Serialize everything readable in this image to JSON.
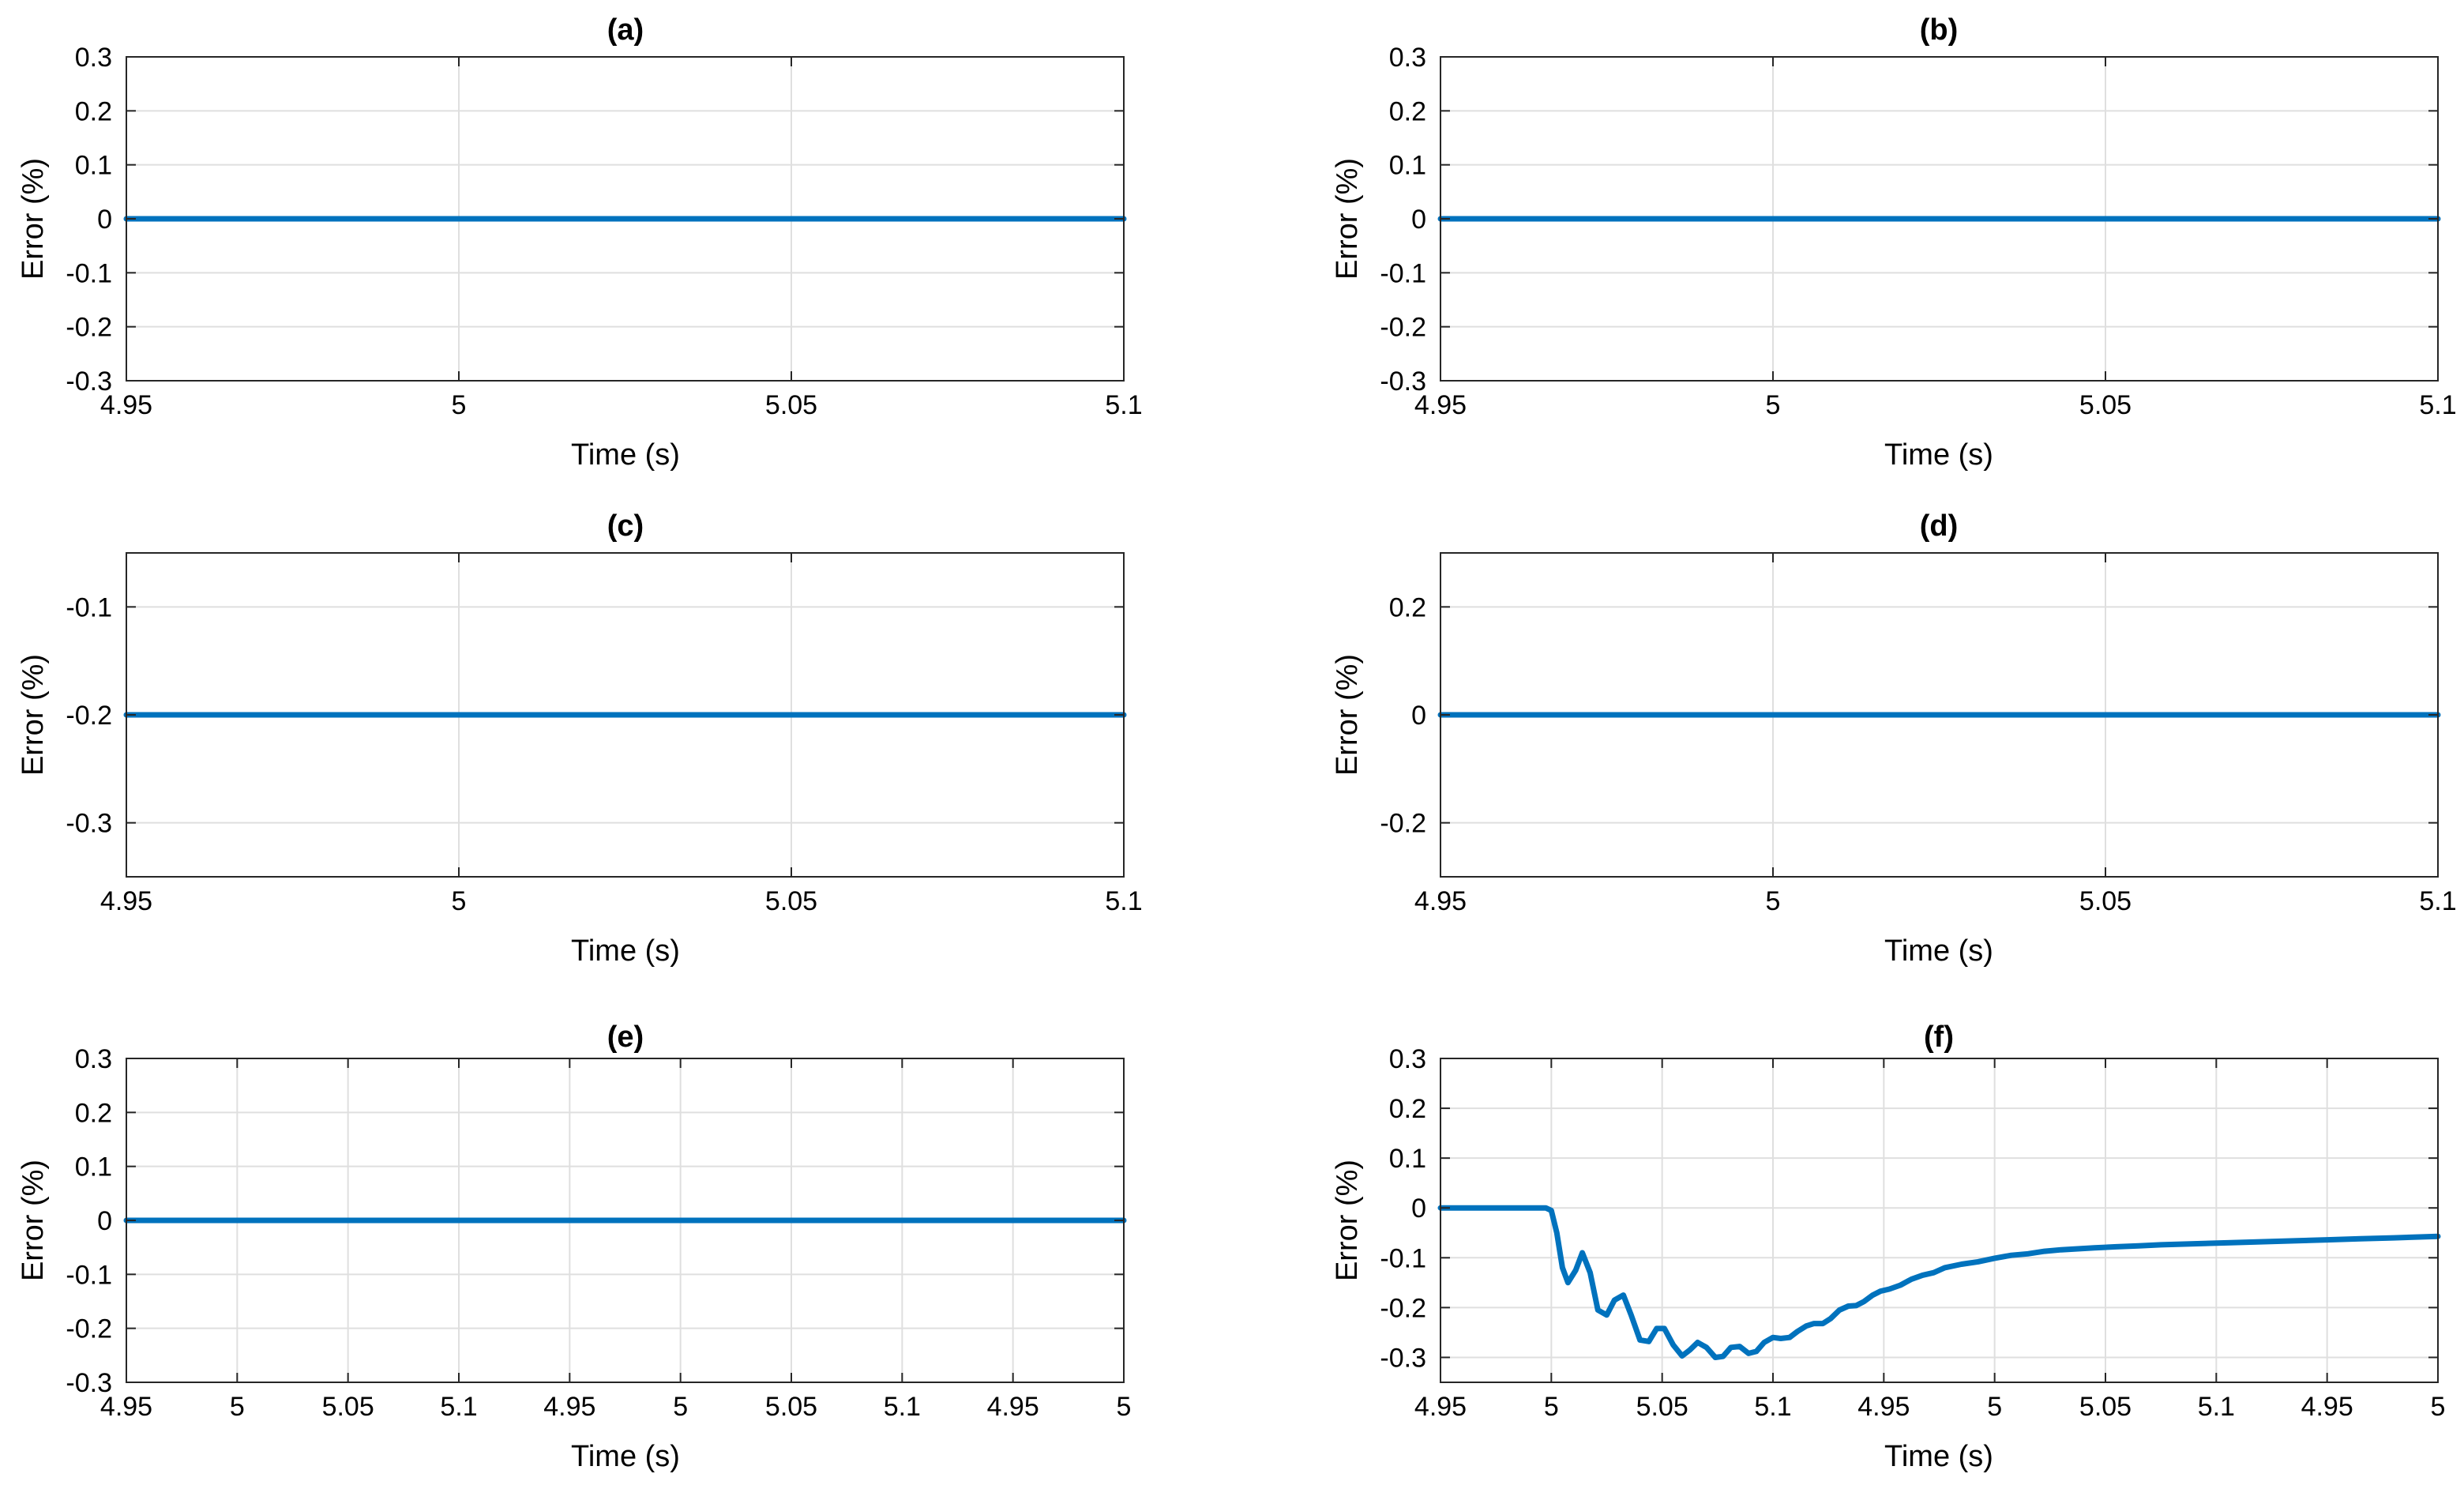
{
  "figure": {
    "line_color": "#0072BD",
    "grid_color": "#DFDFDF",
    "axes_color": "#262626"
  },
  "chart_data": [
    {
      "type": "line",
      "title": "(a)",
      "xlabel": "Time (s)",
      "ylabel": "Error (%)",
      "xlim": [
        4.95,
        5.1
      ],
      "ylim": [
        -0.3,
        0.3
      ],
      "xticks": [
        4.95,
        5,
        5.05,
        5.1
      ],
      "xtick_labels": [
        "4.95",
        "5",
        "5.05",
        "5.1"
      ],
      "yticks": [
        -0.3,
        -0.2,
        -0.1,
        0,
        0.1,
        0.2,
        0.3
      ],
      "ytick_labels": [
        "-0.3",
        "-0.2",
        "-0.1",
        "0",
        "0.1",
        "0.2",
        "0.3"
      ],
      "grid": true,
      "series": [
        {
          "name": "error",
          "x": [
            4.95,
            5.1
          ],
          "y": [
            0,
            0
          ]
        }
      ]
    },
    {
      "type": "line",
      "title": "(b)",
      "xlabel": "Time (s)",
      "ylabel": "Error (%)",
      "xlim": [
        4.95,
        5.1
      ],
      "ylim": [
        -0.3,
        0.3
      ],
      "xticks": [
        4.95,
        5,
        5.05,
        5.1
      ],
      "xtick_labels": [
        "4.95",
        "5",
        "5.05",
        "5.1"
      ],
      "yticks": [
        -0.3,
        -0.2,
        -0.1,
        0,
        0.1,
        0.2,
        0.3
      ],
      "ytick_labels": [
        "-0.3",
        "-0.2",
        "-0.1",
        "0",
        "0.1",
        "0.2",
        "0.3"
      ],
      "grid": true,
      "series": [
        {
          "name": "error",
          "x": [
            4.95,
            5.1
          ],
          "y": [
            0,
            0
          ]
        }
      ]
    },
    {
      "type": "line",
      "title": "(c)",
      "xlabel": "Time (s)",
      "ylabel": "Error (%)",
      "xlim": [
        4.95,
        5.1
      ],
      "ylim": [
        -0.35,
        -0.05
      ],
      "xticks": [
        4.95,
        5,
        5.05,
        5.1
      ],
      "xtick_labels": [
        "4.95",
        "5",
        "5.05",
        "5.1"
      ],
      "yticks": [
        -0.3,
        -0.2,
        -0.1
      ],
      "ytick_labels": [
        "-0.3",
        "-0.2",
        "-0.1"
      ],
      "grid": true,
      "series": [
        {
          "name": "error",
          "x": [
            4.95,
            5.1
          ],
          "y": [
            -0.2,
            -0.2
          ]
        }
      ]
    },
    {
      "type": "line",
      "title": "(d)",
      "xlabel": "Time (s)",
      "ylabel": "Error (%)",
      "xlim": [
        4.95,
        5.1
      ],
      "ylim": [
        -0.3,
        0.3
      ],
      "xticks": [
        4.95,
        5,
        5.05,
        5.1
      ],
      "xtick_labels": [
        "4.95",
        "5",
        "5.05",
        "5.1"
      ],
      "yticks": [
        -0.2,
        0,
        0.2
      ],
      "ytick_labels": [
        "-0.2",
        "0",
        "0.2"
      ],
      "grid": true,
      "series": [
        {
          "name": "error",
          "x": [
            4.95,
            5.1
          ],
          "y": [
            0,
            0
          ]
        }
      ]
    },
    {
      "type": "line",
      "title": "(e)",
      "xlabel": "Time (s)",
      "ylabel": "Error (%)",
      "xlim": [
        0,
        9
      ],
      "ylim": [
        -0.3,
        0.3
      ],
      "xticks": [
        0,
        1,
        2,
        3,
        4,
        5,
        6,
        7,
        8,
        9
      ],
      "xtick_labels": [
        "4.95",
        "5",
        "5.05",
        "5.1",
        "4.95",
        "5",
        "5.05",
        "5.1",
        "4.95",
        "5"
      ],
      "yticks": [
        -0.3,
        -0.2,
        -0.1,
        0,
        0.1,
        0.2,
        0.3
      ],
      "ytick_labels": [
        "-0.3",
        "-0.2",
        "-0.1",
        "0",
        "0.1",
        "0.2",
        "0.3"
      ],
      "grid": true,
      "series": [
        {
          "name": "error",
          "x": [
            0,
            9
          ],
          "y": [
            0,
            0
          ]
        }
      ]
    },
    {
      "type": "line",
      "title": "(f)",
      "xlabel": "Time (s)",
      "ylabel": "Error (%)",
      "xlim": [
        0,
        9
      ],
      "ylim": [
        -0.35,
        0.3
      ],
      "xticks": [
        0,
        1,
        2,
        3,
        4,
        5,
        6,
        7,
        8,
        9
      ],
      "xtick_labels": [
        "4.95",
        "5",
        "5.05",
        "5.1",
        "4.95",
        "5",
        "5.05",
        "5.1",
        "4.95",
        "5"
      ],
      "yticks": [
        -0.3,
        -0.2,
        -0.1,
        0,
        0.1,
        0.2,
        0.3
      ],
      "ytick_labels": [
        "-0.3",
        "-0.2",
        "-0.1",
        "0",
        "0.1",
        "0.2",
        "0.3"
      ],
      "grid": true,
      "series": [
        {
          "name": "error",
          "x": [
            0,
            0.5,
            0.95,
            1.0,
            1.05,
            1.1,
            1.15,
            1.22,
            1.28,
            1.35,
            1.42,
            1.5,
            1.57,
            1.65,
            1.72,
            1.8,
            1.88,
            1.95,
            2.02,
            2.1,
            2.18,
            2.25,
            2.32,
            2.4,
            2.48,
            2.55,
            2.62,
            2.7,
            2.78,
            2.85,
            2.92,
            3.0,
            3.07,
            3.15,
            3.22,
            3.3,
            3.37,
            3.45,
            3.52,
            3.6,
            3.68,
            3.75,
            3.82,
            3.9,
            3.97,
            4.05,
            4.15,
            4.25,
            4.35,
            4.45,
            4.55,
            4.7,
            4.85,
            5.0,
            5.15,
            5.3,
            5.45,
            5.6,
            5.75,
            5.9,
            6.1,
            6.3,
            6.5,
            6.8,
            7.1,
            7.4,
            7.7,
            8.0,
            8.3,
            8.6,
            9.0
          ],
          "y": [
            0,
            0,
            0,
            -0.005,
            -0.05,
            -0.12,
            -0.15,
            -0.125,
            -0.09,
            -0.13,
            -0.205,
            -0.215,
            -0.185,
            -0.175,
            -0.215,
            -0.265,
            -0.268,
            -0.242,
            -0.242,
            -0.275,
            -0.297,
            -0.285,
            -0.27,
            -0.28,
            -0.3,
            -0.298,
            -0.28,
            -0.278,
            -0.292,
            -0.288,
            -0.27,
            -0.26,
            -0.262,
            -0.26,
            -0.248,
            -0.237,
            -0.232,
            -0.232,
            -0.222,
            -0.205,
            -0.197,
            -0.196,
            -0.188,
            -0.175,
            -0.167,
            -0.163,
            -0.155,
            -0.143,
            -0.135,
            -0.13,
            -0.12,
            -0.113,
            -0.108,
            -0.101,
            -0.095,
            -0.092,
            -0.087,
            -0.084,
            -0.082,
            -0.08,
            -0.078,
            -0.076,
            -0.074,
            -0.072,
            -0.07,
            -0.068,
            -0.066,
            -0.064,
            -0.062,
            -0.06,
            -0.057
          ]
        }
      ]
    }
  ]
}
